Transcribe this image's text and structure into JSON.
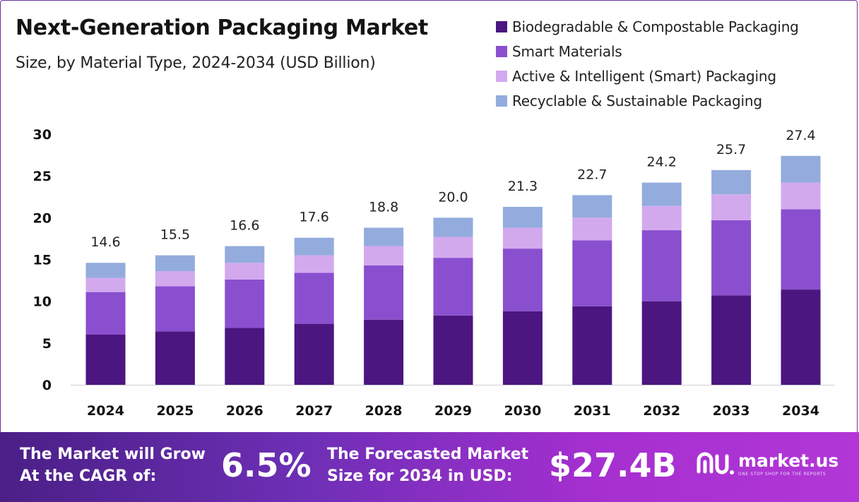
{
  "title": "Next-Generation Packaging Market",
  "subtitle": "Size, by Material Type, 2024-2034 (USD Billion)",
  "chart_data": {
    "type": "bar",
    "stacked": true,
    "categories": [
      "2024",
      "2025",
      "2026",
      "2027",
      "2028",
      "2029",
      "2030",
      "2031",
      "2032",
      "2033",
      "2034"
    ],
    "series": [
      {
        "name": "Biodegradable & Compostable Packaging",
        "color": "#4b1680",
        "values": [
          6.0,
          6.4,
          6.8,
          7.3,
          7.8,
          8.3,
          8.8,
          9.4,
          10.0,
          10.7,
          11.4
        ]
      },
      {
        "name": "Smart Materials",
        "color": "#8a4fcf",
        "values": [
          5.1,
          5.4,
          5.8,
          6.1,
          6.5,
          6.9,
          7.5,
          7.9,
          8.5,
          9.0,
          9.6
        ]
      },
      {
        "name": "Active & Intelligent (Smart) Packaging",
        "color": "#d3a9ee",
        "values": [
          1.7,
          1.8,
          2.0,
          2.1,
          2.3,
          2.5,
          2.5,
          2.7,
          2.9,
          3.1,
          3.2
        ]
      },
      {
        "name": "Recyclable & Sustainable Packaging",
        "color": "#93acdd",
        "values": [
          1.8,
          1.9,
          2.0,
          2.1,
          2.2,
          2.3,
          2.5,
          2.7,
          2.8,
          2.9,
          3.2
        ]
      }
    ],
    "totals": [
      "14.6",
      "15.5",
      "16.6",
      "17.6",
      "18.8",
      "20.0",
      "21.3",
      "22.7",
      "24.2",
      "25.7",
      "27.4"
    ],
    "yticks": [
      0,
      5,
      10,
      15,
      20,
      25,
      30
    ],
    "ylim": [
      0,
      30
    ],
    "legend_position": "top-right",
    "grid": false
  },
  "banner": {
    "cagr_label_1": "The Market will Grow",
    "cagr_label_2": "At the CAGR of:",
    "cagr_value": "6.5%",
    "forecast_label_1": "The Forecasted Market",
    "forecast_label_2": "Size for 2034 in USD:",
    "forecast_value": "$27.4B",
    "logo_text": "market.us",
    "logo_tagline": "ONE STOP SHOP FOR THE REPORTS",
    "logo_icon": "market-us-logo-icon"
  }
}
